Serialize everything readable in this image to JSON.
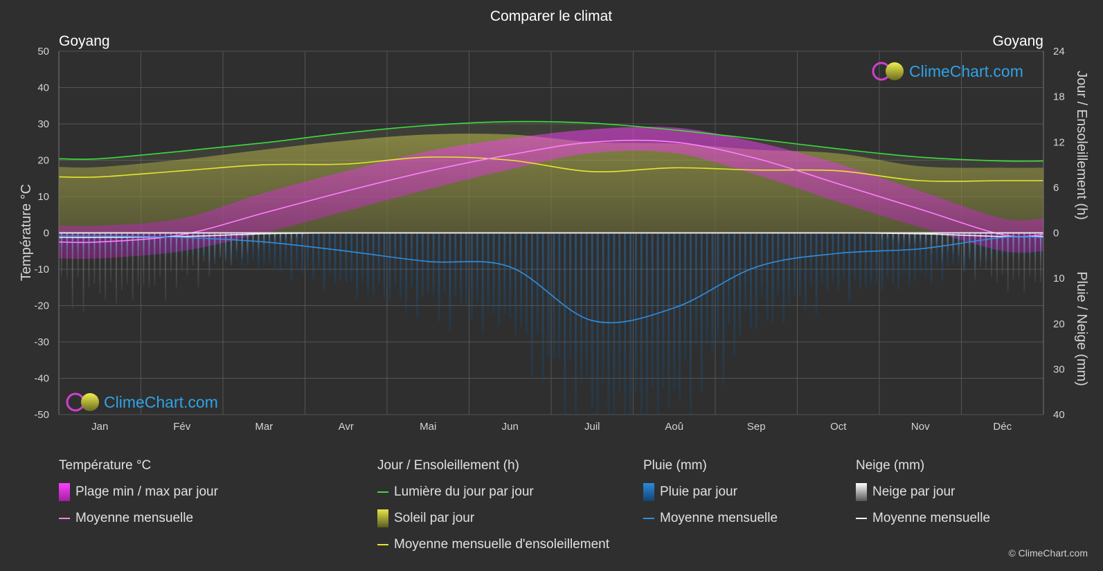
{
  "title": "Comparer le climat",
  "city_left": "Goyang",
  "city_right": "Goyang",
  "axis_left_title": "Température °C",
  "axis_right_top_title": "Jour / Ensoleillement (h)",
  "axis_right_bottom_title": "Pluie / Neige (mm)",
  "logo_text": "ClimeChart.com",
  "copyright": "© ClimeChart.com",
  "colors": {
    "background": "#2f2f2f",
    "temp_range": "#e040e0",
    "temp_mean": "#ff80ff",
    "daylight": "#3ddc3d",
    "sunshine_fill": "#b4b43a",
    "sunshine_mean": "#e6e62e",
    "rain": "#1f6fb3",
    "rain_mean": "#2f8fe0",
    "snow": "#9a9a9a",
    "snow_mean": "#ffffff",
    "logo": "#2fa3e6"
  },
  "chart_data": {
    "type": "line",
    "title": "Comparer le climat",
    "categories": [
      "Jan",
      "Fév",
      "Mar",
      "Avr",
      "Mai",
      "Jun",
      "Juil",
      "Aoû",
      "Sep",
      "Oct",
      "Nov",
      "Déc"
    ],
    "y_left": {
      "label": "Température °C",
      "range": [
        -50,
        50
      ],
      "ticks": [
        "50",
        "40",
        "30",
        "20",
        "10",
        "0",
        "-10",
        "-20",
        "-30",
        "-40",
        "-50"
      ]
    },
    "y_right_top": {
      "label": "Jour / Ensoleillement (h)",
      "range": [
        0,
        24
      ],
      "ticks": [
        "24",
        "18",
        "12",
        "6",
        "0"
      ]
    },
    "y_right_bottom": {
      "label": "Pluie / Neige (mm)",
      "range": [
        0,
        40
      ],
      "ticks": [
        "10",
        "20",
        "30",
        "40"
      ]
    },
    "grid": true,
    "series": [
      {
        "name": "Moyenne mensuelle",
        "group": "Température °C",
        "values": [
          -2.5,
          -0.5,
          5.5,
          11.5,
          17,
          21.5,
          25,
          25,
          20.5,
          13.5,
          6.5,
          -0.5
        ]
      },
      {
        "name": "Plage min / max par jour",
        "group": "Température °C",
        "min": [
          -7,
          -5,
          0,
          6,
          12,
          17.5,
          22,
          22,
          16,
          8.5,
          1.5,
          -5
        ],
        "max": [
          2,
          4,
          11,
          17,
          22.5,
          26,
          28.5,
          29,
          25,
          19,
          11.5,
          4
        ]
      },
      {
        "name": "Lumière du jour par jour",
        "group": "Jour / Ensoleillement (h)",
        "values": [
          9.8,
          10.8,
          11.9,
          13.2,
          14.2,
          14.7,
          14.5,
          13.6,
          12.4,
          11.1,
          10.0,
          9.5
        ]
      },
      {
        "name": "Soleil par jour",
        "group": "Jour / Ensoleillement (h)",
        "values": [
          8.7,
          9.7,
          11,
          12.2,
          13,
          13,
          12,
          11.8,
          11,
          10.5,
          8.8,
          8.6
        ]
      },
      {
        "name": "Moyenne mensuelle d'ensoleillement",
        "group": "Jour / Ensoleillement (h)",
        "values": [
          7.4,
          8.2,
          9.0,
          9.1,
          10.0,
          9.6,
          8.1,
          8.6,
          8.3,
          8.2,
          6.9,
          6.9
        ]
      },
      {
        "name": "Moyenne mensuelle",
        "group": "Pluie (mm)",
        "values": [
          0.7,
          1.0,
          2.0,
          4.0,
          6.3,
          7.5,
          19.3,
          16.5,
          7.5,
          4.5,
          3.5,
          1.0
        ]
      },
      {
        "name": "Moyenne mensuelle",
        "group": "Neige (mm)",
        "values": [
          1.0,
          0.8,
          0.2,
          0,
          0,
          0,
          0,
          0,
          0,
          0,
          0.2,
          0.8
        ]
      }
    ]
  },
  "legend": {
    "temp": {
      "title": "Température °C",
      "items": [
        "Plage min / max par jour",
        "Moyenne mensuelle"
      ]
    },
    "sun": {
      "title": "Jour / Ensoleillement (h)",
      "items": [
        "Lumière du jour par jour",
        "Soleil par jour",
        "Moyenne mensuelle d'ensoleillement"
      ]
    },
    "rain": {
      "title": "Pluie (mm)",
      "items": [
        "Pluie par jour",
        "Moyenne mensuelle"
      ]
    },
    "snow": {
      "title": "Neige (mm)",
      "items": [
        "Neige par jour",
        "Moyenne mensuelle"
      ]
    }
  }
}
